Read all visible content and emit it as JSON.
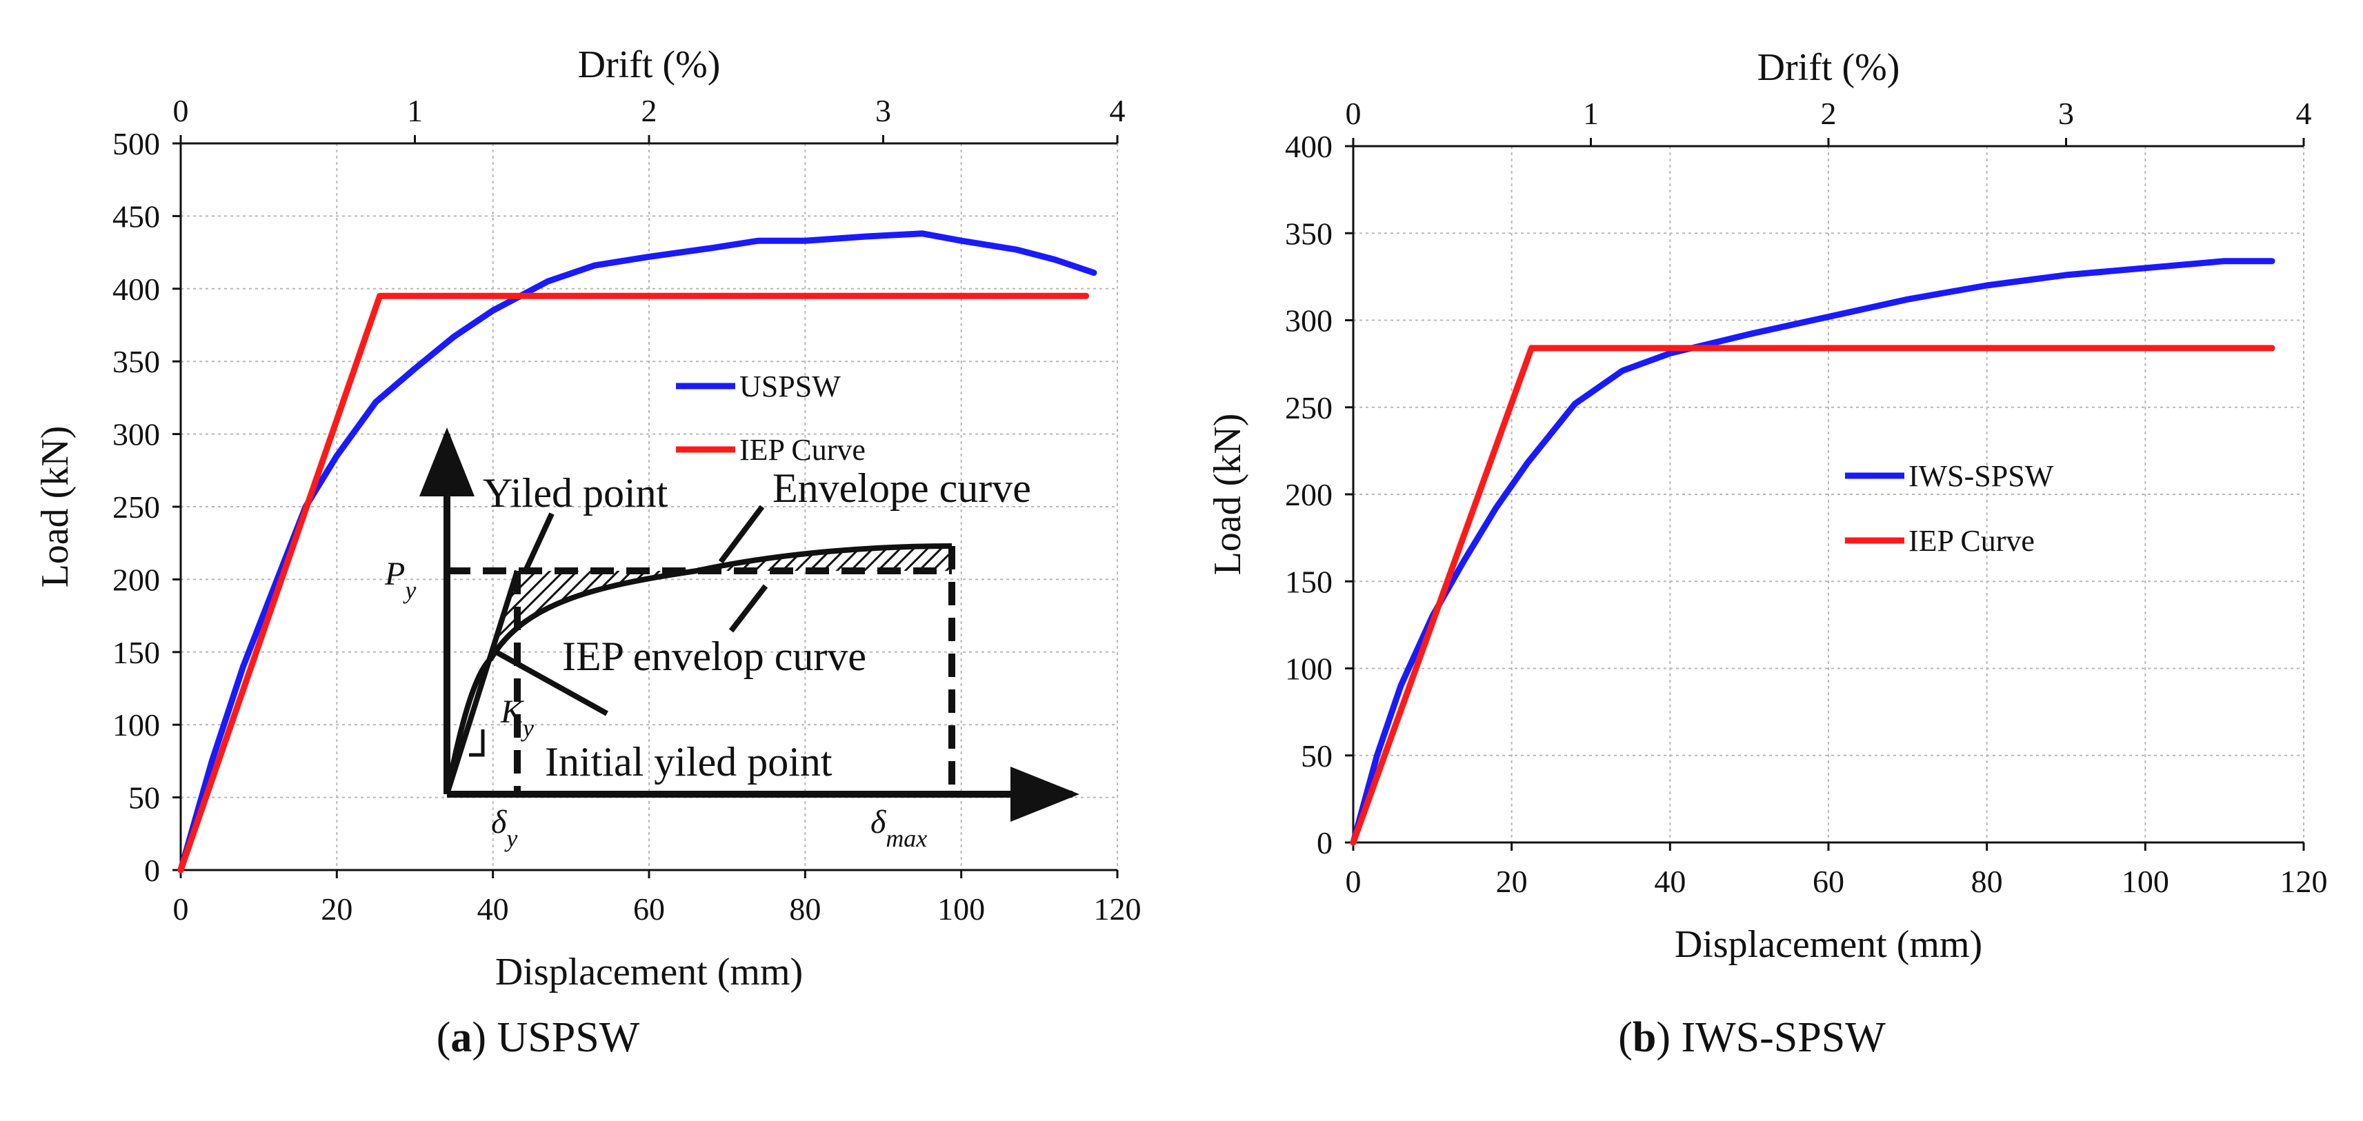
{
  "captions": [
    {
      "letter": "a",
      "text": "USPSW"
    },
    {
      "letter": "b",
      "text": "IWS-SPSW"
    }
  ],
  "chart_data": [
    {
      "type": "line",
      "title": "",
      "xlabel": "Displacement (mm)",
      "ylabel": "Load (kN)",
      "x2label": "Drift (%)",
      "xlim": [
        0,
        120
      ],
      "ylim": [
        0,
        500
      ],
      "x2lim": [
        0,
        4
      ],
      "xticks": [
        0,
        20,
        40,
        60,
        80,
        100,
        120
      ],
      "yticks": [
        0,
        50,
        100,
        150,
        200,
        250,
        300,
        350,
        400,
        450,
        500
      ],
      "x2ticks": [
        0,
        1,
        2,
        3,
        4
      ],
      "grid": true,
      "legend_position": "center-right",
      "series": [
        {
          "name": "USPSW",
          "color": "#1a1aff",
          "x": [
            0,
            4,
            8,
            12,
            16,
            20,
            25,
            30,
            35,
            40,
            47,
            53,
            60,
            68,
            74,
            80,
            88,
            95,
            100,
            107,
            112,
            117
          ],
          "y": [
            0,
            75,
            140,
            195,
            250,
            285,
            322,
            345,
            367,
            385,
            405,
            416,
            422,
            428,
            433,
            433,
            436,
            438,
            433,
            427,
            420,
            411
          ]
        },
        {
          "name": "IEP Curve",
          "color": "#ff1a1a",
          "x": [
            0,
            25.5,
            116
          ],
          "y": [
            0,
            395,
            395
          ]
        }
      ],
      "inset": {
        "labels": {
          "yield": "Yiled point",
          "envelope": "Envelope curve",
          "iep": "IEP envelop curve",
          "initial": "Initial yiled point",
          "py": "P",
          "py_sub": "y",
          "ky": "K",
          "ky_sub": "y",
          "dy": "δ",
          "dy_sub": "y",
          "dmax": "δ",
          "dmax_sub": "max"
        }
      }
    },
    {
      "type": "line",
      "title": "",
      "xlabel": "Displacement (mm)",
      "ylabel": "Load (kN)",
      "x2label": "Drift (%)",
      "xlim": [
        0,
        120
      ],
      "ylim": [
        0,
        400
      ],
      "x2lim": [
        0,
        4
      ],
      "xticks": [
        0,
        20,
        40,
        60,
        80,
        100,
        120
      ],
      "yticks": [
        0,
        50,
        100,
        150,
        200,
        250,
        300,
        350,
        400
      ],
      "x2ticks": [
        0,
        1,
        2,
        3,
        4
      ],
      "grid": true,
      "legend_position": "center-right",
      "series": [
        {
          "name": "IWS-SPSW",
          "color": "#1a1aff",
          "x": [
            0,
            3,
            6,
            10,
            14,
            18,
            22,
            28,
            34,
            40,
            50,
            60,
            70,
            80,
            90,
            100,
            110,
            116
          ],
          "y": [
            0,
            50,
            90,
            130,
            162,
            192,
            218,
            252,
            271,
            281,
            292,
            302,
            312,
            320,
            326,
            330,
            334,
            334
          ]
        },
        {
          "name": "IEP Curve",
          "color": "#ff1a1a",
          "x": [
            0,
            22.5,
            116
          ],
          "y": [
            0,
            284,
            284
          ]
        }
      ]
    }
  ]
}
